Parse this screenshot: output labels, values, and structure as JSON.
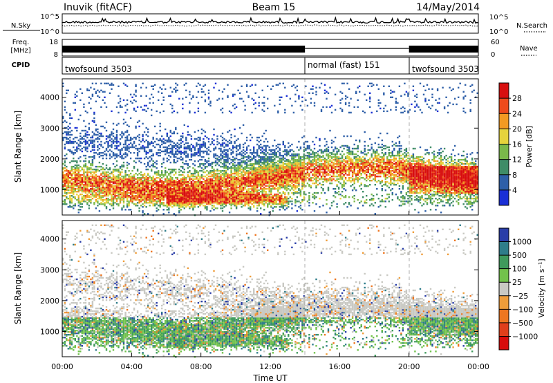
{
  "header": {
    "station": "Inuvik (fitACF)",
    "beam": "Beam 15",
    "date": "14/May/2014"
  },
  "status_panels": {
    "nsky_label": "N.Sky",
    "nsearch_label": "N.Search",
    "freq_label_1": "Freq.",
    "freq_label_2": "[MHz]",
    "nave_label": "Nave",
    "cpid_label": "CPID",
    "nsky_ticks": [
      "10^5",
      "10^0"
    ],
    "nsearch_ticks": [
      "10^5",
      "10^0"
    ],
    "freq_ticks": [
      "18",
      "8"
    ],
    "nave_ticks": [
      "60",
      "0"
    ],
    "cpid_segments": [
      {
        "label": "twofsound 3503",
        "start_hour": 0,
        "end_hour": 14
      },
      {
        "label": "normal (fast) 151",
        "start_hour": 14,
        "end_hour": 20
      },
      {
        "label": "twofsound 3503",
        "start_hour": 20,
        "end_hour": 24
      }
    ]
  },
  "chart_data": [
    {
      "type": "heatmap",
      "panel": "power",
      "ylabel": "Slant Range [km]",
      "x_ticks": [
        "00:00",
        "04:00",
        "08:00",
        "12:00",
        "16:00",
        "20:00",
        "00:00"
      ],
      "xlim": [
        0,
        24
      ],
      "ylim": [
        180,
        4600
      ],
      "y_ticks": [
        1000,
        2000,
        3000,
        4000
      ],
      "colorbar_label": "Power [dB]",
      "colorbar_ticks": [
        4,
        8,
        12,
        16,
        20,
        24,
        28
      ],
      "colorbar_colors": [
        "#1a2fd6",
        "#2e5fa8",
        "#3f8c67",
        "#7ab84a",
        "#e6d33c",
        "#f39a22",
        "#ee4a1b",
        "#d80f0f"
      ]
    },
    {
      "type": "heatmap",
      "panel": "velocity",
      "xlabel": "Time UT",
      "ylabel": "Slant Range [km]",
      "x_ticks": [
        "00:00",
        "04:00",
        "08:00",
        "12:00",
        "16:00",
        "20:00",
        "00:00"
      ],
      "xlim": [
        0,
        24
      ],
      "ylim": [
        180,
        4600
      ],
      "y_ticks": [
        1000,
        2000,
        3000,
        4000
      ],
      "colorbar_label": "Velocity [m s⁻¹]",
      "colorbar_ticks": [
        "1000",
        "500",
        "100",
        "25",
        "−25",
        "−100",
        "−500",
        "−1000"
      ],
      "colorbar_colors": [
        "#2a3ea8",
        "#2f7d8a",
        "#3f9a5c",
        "#72c24c",
        "#c9c9c3",
        "#ef9d3a",
        "#ee7620",
        "#e03f1b",
        "#d80b0b"
      ]
    }
  ]
}
